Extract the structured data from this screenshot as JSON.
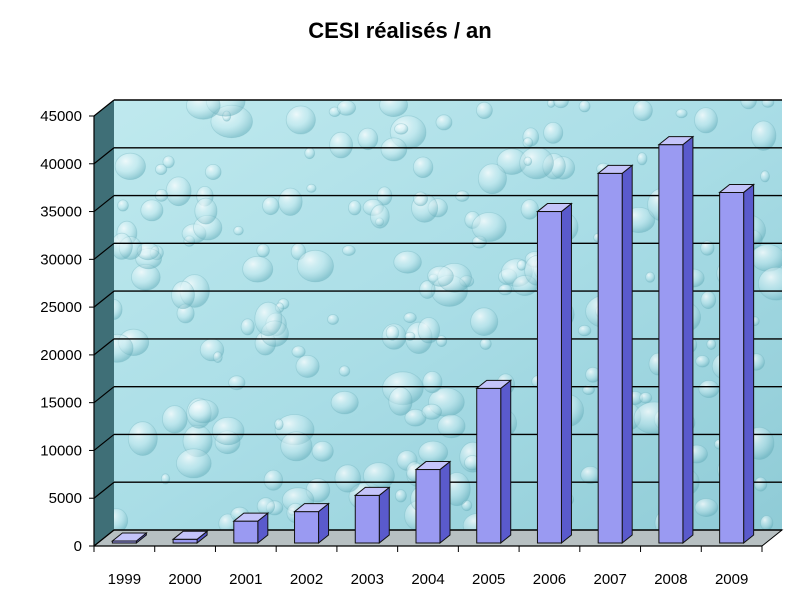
{
  "chart_data": {
    "type": "bar",
    "title": "CESI réalisés / an",
    "xlabel": "",
    "ylabel": "",
    "categories": [
      "1999",
      "2000",
      "2001",
      "2002",
      "2003",
      "2004",
      "2005",
      "2006",
      "2007",
      "2008",
      "2009"
    ],
    "values": [
      100,
      700,
      2600,
      3600,
      5300,
      8000,
      16500,
      35000,
      39000,
      42000,
      37000
    ],
    "ylim": [
      0,
      45000
    ],
    "yticks": [
      "0",
      "5000",
      "10000",
      "15000",
      "20000",
      "25000",
      "30000",
      "35000",
      "40000",
      "45000"
    ],
    "grid": true,
    "legend": "none",
    "style": "3d-column",
    "colors": {
      "bar_front": "#9a9af2",
      "bar_side": "#5a5acc",
      "bar_top": "#c4c4fa",
      "bar_outline": "#111111",
      "wall": "#a9dde6",
      "side_wall": "#3f6f77",
      "floor": "#b7c0c2",
      "gridline": "#000000"
    }
  }
}
